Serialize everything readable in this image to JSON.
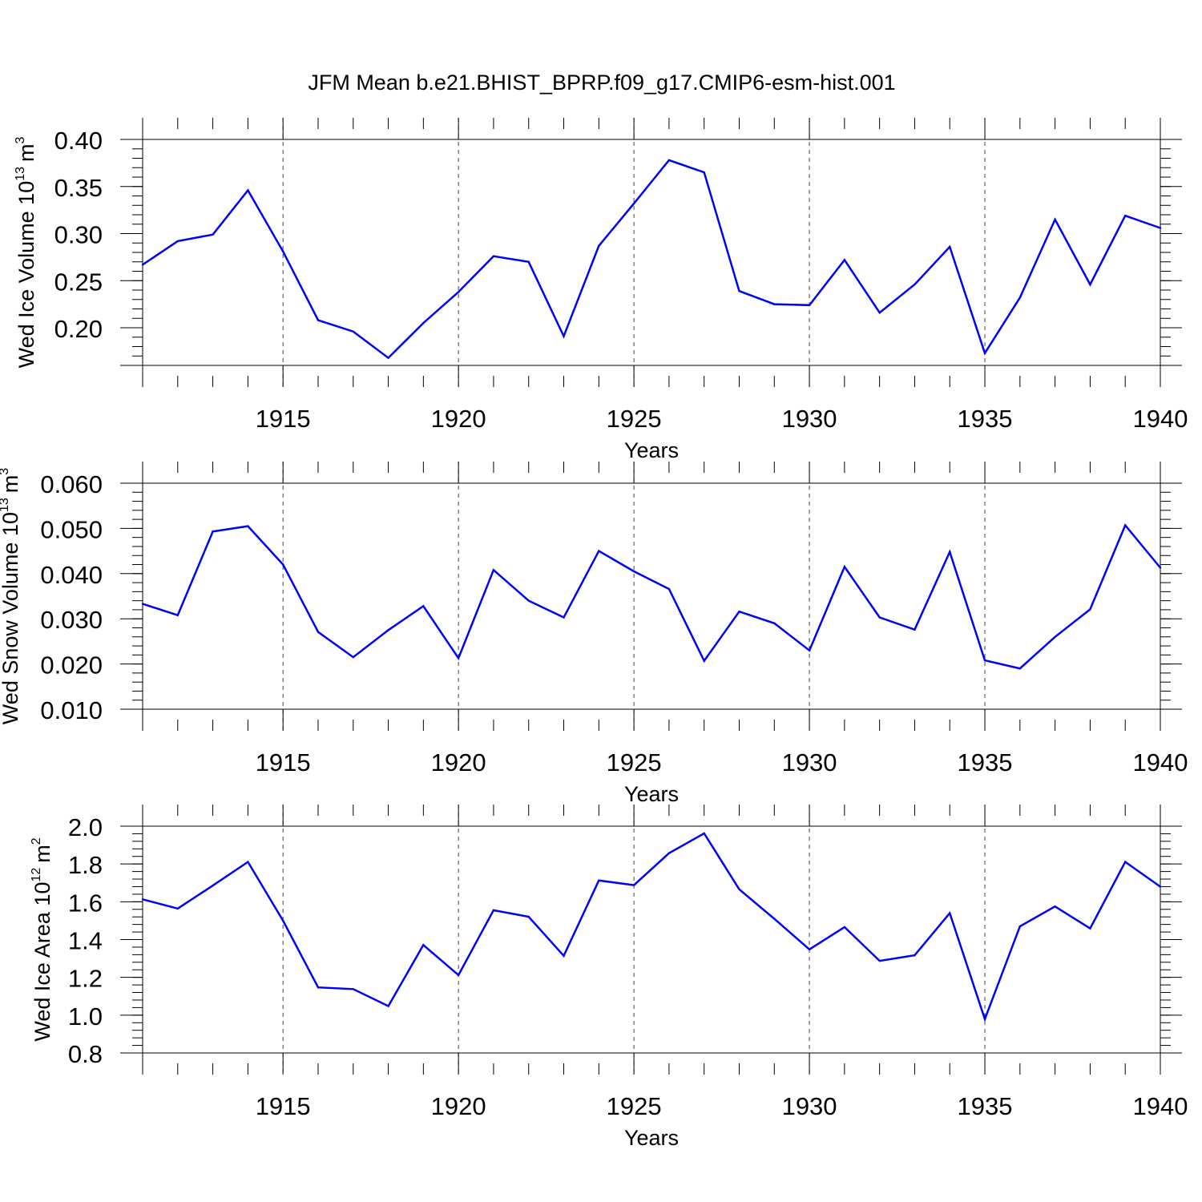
{
  "title": "JFM Mean b.e21.BHIST_BPRP.f09_g17.CMIP6-esm-hist.001",
  "line_color": "#0000ff",
  "chart_data": [
    {
      "type": "line",
      "ylabel_main": "Wed Ice Volume 10",
      "ylabel_exp": "13",
      "ylabel_unit": "m",
      "ylabel_unit_exp": "3",
      "xlabel": "Years",
      "xlim": [
        1911,
        1940
      ],
      "ylim": [
        0.16,
        0.4
      ],
      "ytick_values": [
        0.2,
        0.25,
        0.3,
        0.35,
        0.4
      ],
      "ytick_labels": [
        "0.20",
        "0.25",
        "0.30",
        "0.35",
        "0.40"
      ],
      "xtick_values": [
        1915,
        1920,
        1925,
        1930,
        1935,
        1940
      ],
      "xtick_labels": [
        "1915",
        "1920",
        "1925",
        "1930",
        "1935",
        "1940"
      ],
      "x": [
        1911,
        1912,
        1913,
        1914,
        1915,
        1916,
        1917,
        1918,
        1919,
        1920,
        1921,
        1922,
        1923,
        1924,
        1925,
        1926,
        1927,
        1928,
        1929,
        1930,
        1931,
        1932,
        1933,
        1934,
        1935,
        1936,
        1937,
        1938,
        1939,
        1940
      ],
      "values": [
        0.267,
        0.292,
        0.299,
        0.346,
        0.281,
        0.208,
        0.196,
        0.168,
        0.205,
        0.238,
        0.276,
        0.27,
        0.191,
        0.287,
        0.332,
        0.378,
        0.365,
        0.239,
        0.225,
        0.224,
        0.272,
        0.216,
        0.246,
        0.286,
        0.173,
        0.232,
        0.315,
        0.246,
        0.319,
        0.306
      ]
    },
    {
      "type": "line",
      "ylabel_main": "Wed Snow Volume 10",
      "ylabel_exp": "13",
      "ylabel_unit": "m",
      "ylabel_unit_exp": "3",
      "xlabel": "Years",
      "xlim": [
        1911,
        1940
      ],
      "ylim": [
        0.01,
        0.06
      ],
      "ytick_values": [
        0.01,
        0.02,
        0.03,
        0.04,
        0.05,
        0.06
      ],
      "ytick_labels": [
        "0.010",
        "0.020",
        "0.030",
        "0.040",
        "0.050",
        "0.060"
      ],
      "xtick_values": [
        1915,
        1920,
        1925,
        1930,
        1935,
        1940
      ],
      "xtick_labels": [
        "1915",
        "1920",
        "1925",
        "1930",
        "1935",
        "1940"
      ],
      "x": [
        1911,
        1912,
        1913,
        1914,
        1915,
        1916,
        1917,
        1918,
        1919,
        1920,
        1921,
        1922,
        1923,
        1924,
        1925,
        1926,
        1927,
        1928,
        1929,
        1930,
        1931,
        1932,
        1933,
        1934,
        1935,
        1936,
        1937,
        1938,
        1939,
        1940
      ],
      "values": [
        0.0333,
        0.0308,
        0.0493,
        0.0505,
        0.042,
        0.0271,
        0.0215,
        0.0275,
        0.0328,
        0.0213,
        0.0408,
        0.034,
        0.0303,
        0.045,
        0.0405,
        0.0366,
        0.0207,
        0.0316,
        0.029,
        0.023,
        0.0415,
        0.0303,
        0.0276,
        0.0448,
        0.0208,
        0.019,
        0.026,
        0.0321,
        0.0507,
        0.0413
      ]
    },
    {
      "type": "line",
      "ylabel_main": "Wed Ice Area 10",
      "ylabel_exp": "12",
      "ylabel_unit": "m",
      "ylabel_unit_exp": "2",
      "xlabel": "Years",
      "xlim": [
        1911,
        1940
      ],
      "ylim": [
        0.8,
        2.0
      ],
      "ytick_values": [
        0.8,
        1.0,
        1.2,
        1.4,
        1.6,
        1.8,
        2.0
      ],
      "ytick_labels": [
        "0.8",
        "1.0",
        "1.2",
        "1.4",
        "1.6",
        "1.8",
        "2.0"
      ],
      "xtick_values": [
        1915,
        1920,
        1925,
        1930,
        1935,
        1940
      ],
      "xtick_labels": [
        "1915",
        "1920",
        "1925",
        "1930",
        "1935",
        "1940"
      ],
      "x": [
        1911,
        1912,
        1913,
        1914,
        1915,
        1916,
        1917,
        1918,
        1919,
        1920,
        1921,
        1922,
        1923,
        1924,
        1925,
        1926,
        1927,
        1928,
        1929,
        1930,
        1931,
        1932,
        1933,
        1934,
        1935,
        1936,
        1937,
        1938,
        1939,
        1940
      ],
      "values": [
        1.613,
        1.564,
        1.686,
        1.811,
        1.5,
        1.147,
        1.138,
        1.048,
        1.371,
        1.212,
        1.555,
        1.521,
        1.314,
        1.713,
        1.688,
        1.857,
        1.962,
        1.666,
        1.51,
        1.348,
        1.466,
        1.287,
        1.317,
        1.54,
        0.979,
        1.47,
        1.575,
        1.459,
        1.811,
        1.68
      ]
    }
  ]
}
